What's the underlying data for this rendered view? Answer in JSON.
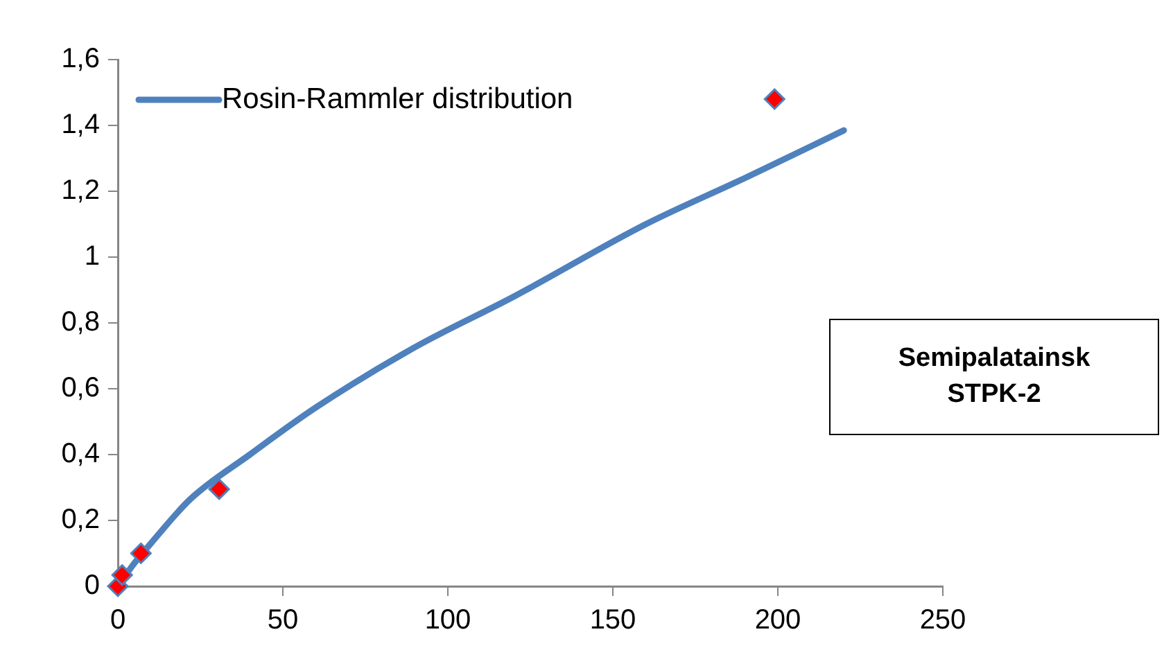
{
  "chart_data": {
    "type": "line",
    "annotations": [
      "Semipalatainsk\nSTPK-2"
    ],
    "series": [
      {
        "name": "Rosin-Rammler distribution",
        "type": "line",
        "color": "#4f81bd",
        "marker": "none",
        "x": [
          0,
          5,
          10,
          22,
          40,
          60,
          90,
          120,
          160,
          190,
          220
        ],
        "values": [
          0,
          0.07,
          0.13,
          0.265,
          0.4,
          0.543,
          0.726,
          0.88,
          1.1,
          1.24,
          1.385
        ]
      },
      {
        "type": "scatter",
        "color": "#ff0000",
        "marker": "diamond",
        "x": [
          0,
          1.3,
          7,
          30.7,
          199
        ],
        "values": [
          0,
          0.034,
          0.1,
          0.295,
          1.48
        ]
      }
    ],
    "xlim": [
      0,
      250
    ],
    "xticks": [
      0,
      50,
      100,
      150,
      200,
      250
    ],
    "ylim": [
      0,
      1.6
    ],
    "yticks": [
      0,
      {
        "value": 0.2,
        "label": "0,2"
      },
      {
        "value": 0.4,
        "label": "0,4"
      },
      {
        "value": 0.6,
        "label": "0,6"
      },
      {
        "value": 0.8,
        "label": "0,8"
      },
      1,
      {
        "value": 1.2,
        "label": "1,2"
      },
      {
        "value": 1.4,
        "label": "1,4"
      },
      {
        "value": 1.6,
        "label": "1,6"
      }
    ],
    "grid": false,
    "legend": "top left"
  }
}
